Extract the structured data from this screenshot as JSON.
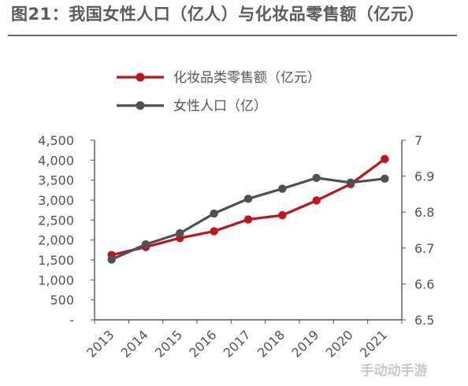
{
  "title": "图21：我国女性人口（亿人）与化妆品零售额（亿元）",
  "colors": {
    "cosmetics": "#c0141c",
    "population": "#505050",
    "title": "#5b5b5b"
  },
  "watermark": "手动动手游",
  "chart_data": {
    "type": "line",
    "categories": [
      "2013",
      "2014",
      "2015",
      "2016",
      "2017",
      "2018",
      "2019",
      "2020",
      "2021"
    ],
    "left_axis": {
      "ylim": [
        0,
        4500
      ],
      "ticks": [
        "-",
        "500",
        "1,000",
        "1,500",
        "2,000",
        "2,500",
        "3,000",
        "3,500",
        "4,000",
        "4,500"
      ]
    },
    "right_axis": {
      "ylim": [
        6.5,
        7.0
      ],
      "ticks": [
        "6.5",
        "6.6",
        "6.7",
        "6.8",
        "6.9",
        "7"
      ]
    },
    "legend_position": "top",
    "grid": false,
    "series": [
      {
        "name": "化妆品类零售额（亿元）",
        "axis": "left",
        "color": "#c0141c",
        "values": [
          1625,
          1825,
          2050,
          2220,
          2515,
          2620,
          2990,
          3400,
          4030
        ]
      },
      {
        "name": "女性人口（亿）",
        "axis": "right",
        "color": "#505050",
        "values": [
          6.668,
          6.71,
          6.741,
          6.796,
          6.837,
          6.865,
          6.895,
          6.882,
          6.893
        ]
      }
    ]
  }
}
